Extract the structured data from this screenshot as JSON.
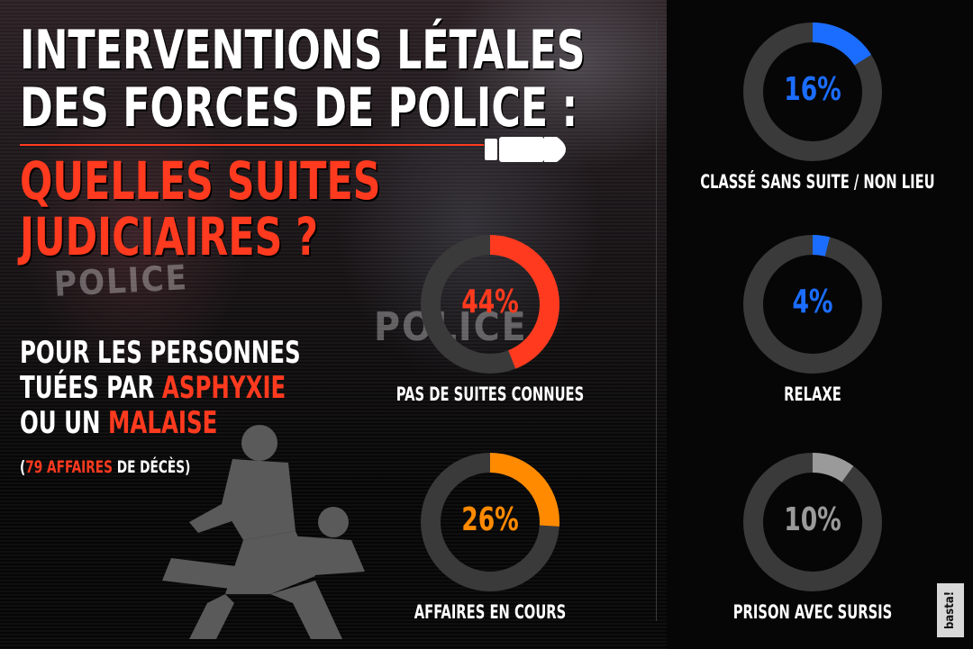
{
  "title": {
    "line1": "INTERVENTIONS LÉTALES",
    "line2": "DES FORCES DE POLICE :",
    "line3": "QUELLES SUITES",
    "line4": "JUDICIAIRES ?"
  },
  "subtitle": {
    "part1": "POUR LES PERSONNES",
    "part2": "TUÉES PAR ",
    "part2_red": "ASPHYXIE",
    "part3": "OU UN ",
    "part3_red": "MALAISE",
    "note_open": "(",
    "note_red": "79 AFFAIRES",
    "note_rest": " DE DÉCÈS)"
  },
  "background": {
    "patch1": "POLICE",
    "patch2": "POLICE"
  },
  "logo": "basta!",
  "colors": {
    "red": "#ff3a1f",
    "orange": "#ff8a00",
    "blue": "#1b6dff",
    "grey": "#9a9a9a",
    "track": "#3a3a3a"
  },
  "chart_data": [
    {
      "type": "pie",
      "label": "CLASSÉ SANS SUITE / NON LIEU",
      "value": 16,
      "display": "16%",
      "color": "#1b6dff"
    },
    {
      "type": "pie",
      "label": "PAS DE SUITES CONNUES",
      "value": 44,
      "display": "44%",
      "color": "#ff3a1f"
    },
    {
      "type": "pie",
      "label": "RELAXE",
      "value": 4,
      "display": "4%",
      "color": "#1b6dff"
    },
    {
      "type": "pie",
      "label": "AFFAIRES EN COURS",
      "value": 26,
      "display": "26%",
      "color": "#ff8a00"
    },
    {
      "type": "pie",
      "label": "PRISON AVEC SURSIS",
      "value": 10,
      "display": "10%",
      "color": "#9a9a9a"
    }
  ]
}
